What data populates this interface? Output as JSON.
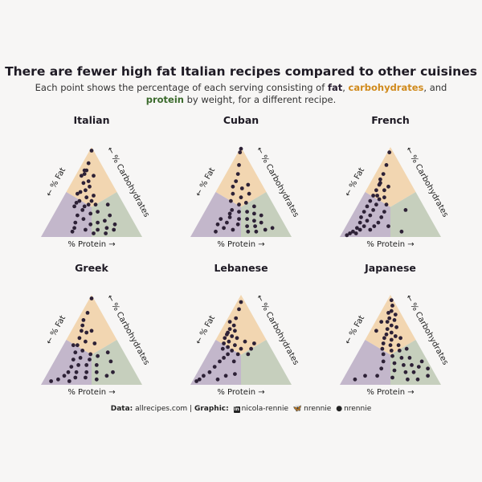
{
  "title": "There are fewer high fat Italian recipes compared to other cuisines",
  "subtitle": {
    "before": "Each point shows the percentage of each serving consisting of ",
    "fat": "fat",
    "sep1": ", ",
    "carbohydrates": "carbohydrates",
    "sep2": ", and ",
    "protein": "protein",
    "after": " by weight, for a different recipe."
  },
  "colors": {
    "fat_region": "#c3b7cb",
    "carb_region": "#f2d6b1",
    "protein_region": "#c6cfbd",
    "point": "#2d2136",
    "carb_text": "#d08a1c",
    "protein_text": "#3b6a2c"
  },
  "caption": {
    "data_label": "Data:",
    "data_value": "allrecipes.com",
    "divider": "|",
    "graphic_label": "Graphic:",
    "linkedin_icon": "linkedin-icon",
    "linkedin": "nicola-rennie",
    "bluesky_icon": "butterfly-icon",
    "bluesky": "nrennie",
    "github_icon": "github-icon",
    "github": "nrennie"
  },
  "chart_data": [
    {
      "type": "scatter",
      "subtype": "ternary",
      "title": "Italian",
      "axis_labels": {
        "fat": "← % Fat",
        "carbohydrates": "← % Carbohydrates",
        "protein": "% Protein →"
      },
      "point_columns": [
        "fat_pct",
        "carbohydrates_pct",
        "protein_pct"
      ],
      "points": [
        [
          2,
          96,
          2
        ],
        [
          12,
          82,
          6
        ],
        [
          20,
          74,
          6
        ],
        [
          22,
          70,
          8
        ],
        [
          26,
          68,
          6
        ],
        [
          18,
          74,
          8
        ],
        [
          28,
          60,
          12
        ],
        [
          24,
          56,
          20
        ],
        [
          30,
          52,
          18
        ],
        [
          36,
          50,
          14
        ],
        [
          40,
          48,
          12
        ],
        [
          33,
          44,
          23
        ],
        [
          42,
          40,
          18
        ],
        [
          46,
          38,
          16
        ],
        [
          30,
          40,
          30
        ],
        [
          25,
          46,
          29
        ],
        [
          50,
          34,
          16
        ],
        [
          40,
          34,
          26
        ],
        [
          35,
          36,
          29
        ],
        [
          28,
          36,
          36
        ],
        [
          44,
          30,
          26
        ],
        [
          52,
          24,
          24
        ],
        [
          38,
          26,
          36
        ],
        [
          30,
          28,
          42
        ],
        [
          48,
          20,
          32
        ],
        [
          58,
          16,
          26
        ],
        [
          44,
          14,
          42
        ],
        [
          36,
          16,
          48
        ],
        [
          28,
          18,
          54
        ],
        [
          20,
          24,
          56
        ],
        [
          62,
          10,
          28
        ],
        [
          52,
          8,
          40
        ],
        [
          40,
          8,
          52
        ],
        [
          30,
          10,
          60
        ],
        [
          20,
          14,
          66
        ],
        [
          66,
          6,
          28
        ],
        [
          46,
          4,
          50
        ],
        [
          34,
          4,
          62
        ],
        [
          24,
          8,
          68
        ],
        [
          16,
          36,
          48
        ],
        [
          22,
          62,
          16
        ],
        [
          14,
          68,
          18
        ]
      ]
    },
    {
      "type": "scatter",
      "subtype": "ternary",
      "title": "Cuban",
      "axis_labels": {
        "fat": "← % Fat",
        "carbohydrates": "← % Carbohydrates",
        "protein": "% Protein →"
      },
      "point_columns": [
        "fat_pct",
        "carbohydrates_pct",
        "protein_pct"
      ],
      "points": [
        [
          1,
          98,
          1
        ],
        [
          4,
          94,
          2
        ],
        [
          12,
          80,
          8
        ],
        [
          18,
          70,
          12
        ],
        [
          24,
          62,
          14
        ],
        [
          30,
          56,
          14
        ],
        [
          22,
          54,
          24
        ],
        [
          34,
          48,
          18
        ],
        [
          28,
          44,
          28
        ],
        [
          18,
          48,
          34
        ],
        [
          40,
          40,
          20
        ],
        [
          34,
          36,
          30
        ],
        [
          26,
          38,
          36
        ],
        [
          20,
          34,
          46
        ],
        [
          44,
          30,
          26
        ],
        [
          38,
          28,
          34
        ],
        [
          30,
          28,
          42
        ],
        [
          24,
          26,
          50
        ],
        [
          18,
          24,
          58
        ],
        [
          50,
          22,
          28
        ],
        [
          42,
          20,
          38
        ],
        [
          34,
          20,
          46
        ],
        [
          28,
          18,
          54
        ],
        [
          22,
          16,
          62
        ],
        [
          56,
          16,
          28
        ],
        [
          46,
          14,
          40
        ],
        [
          38,
          12,
          50
        ],
        [
          30,
          12,
          58
        ],
        [
          62,
          10,
          28
        ],
        [
          54,
          8,
          38
        ],
        [
          40,
          6,
          54
        ],
        [
          32,
          6,
          62
        ],
        [
          72,
          6,
          22
        ],
        [
          22,
          8,
          70
        ],
        [
          14,
          10,
          76
        ],
        [
          66,
          14,
          20
        ],
        [
          60,
          20,
          20
        ],
        [
          48,
          26,
          26
        ],
        [
          14,
          58,
          28
        ]
      ]
    },
    {
      "type": "scatter",
      "subtype": "ternary",
      "title": "French",
      "axis_labels": {
        "fat": "← % Fat",
        "carbohydrates": "← % Carbohydrates",
        "protein": "% Protein →"
      },
      "point_columns": [
        "fat_pct",
        "carbohydrates_pct",
        "protein_pct"
      ],
      "points": [
        [
          4,
          94,
          2
        ],
        [
          14,
          80,
          6
        ],
        [
          22,
          70,
          8
        ],
        [
          28,
          64,
          8
        ],
        [
          32,
          58,
          10
        ],
        [
          38,
          52,
          10
        ],
        [
          30,
          52,
          18
        ],
        [
          44,
          46,
          10
        ],
        [
          40,
          42,
          18
        ],
        [
          34,
          44,
          22
        ],
        [
          50,
          40,
          10
        ],
        [
          46,
          36,
          18
        ],
        [
          36,
          36,
          28
        ],
        [
          56,
          34,
          10
        ],
        [
          52,
          30,
          18
        ],
        [
          42,
          28,
          30
        ],
        [
          62,
          28,
          10
        ],
        [
          58,
          24,
          18
        ],
        [
          48,
          22,
          30
        ],
        [
          68,
          22,
          10
        ],
        [
          64,
          18,
          18
        ],
        [
          54,
          16,
          30
        ],
        [
          72,
          16,
          12
        ],
        [
          70,
          12,
          18
        ],
        [
          60,
          12,
          28
        ],
        [
          78,
          10,
          12
        ],
        [
          76,
          8,
          16
        ],
        [
          66,
          8,
          26
        ],
        [
          84,
          6,
          10
        ],
        [
          82,
          4,
          14
        ],
        [
          88,
          4,
          8
        ],
        [
          92,
          2,
          6
        ],
        [
          30,
          60,
          10
        ],
        [
          24,
          56,
          20
        ],
        [
          46,
          12,
          42
        ],
        [
          36,
          6,
          58
        ],
        [
          20,
          30,
          50
        ],
        [
          40,
          46,
          14
        ]
      ]
    },
    {
      "type": "scatter",
      "subtype": "ternary",
      "title": "Greek",
      "axis_labels": {
        "fat": "← % Fat",
        "carbohydrates": "← % Carbohydrates",
        "protein": "% Protein →"
      },
      "point_columns": [
        "fat_pct",
        "carbohydrates_pct",
        "protein_pct"
      ],
      "points": [
        [
          2,
          96,
          2
        ],
        [
          14,
          80,
          6
        ],
        [
          22,
          72,
          6
        ],
        [
          30,
          60,
          10
        ],
        [
          26,
          58,
          16
        ],
        [
          36,
          52,
          12
        ],
        [
          32,
          48,
          20
        ],
        [
          42,
          44,
          14
        ],
        [
          24,
          46,
          30
        ],
        [
          40,
          38,
          22
        ],
        [
          48,
          36,
          16
        ],
        [
          34,
          34,
          32
        ],
        [
          46,
          30,
          24
        ],
        [
          54,
          28,
          18
        ],
        [
          38,
          28,
          34
        ],
        [
          28,
          32,
          40
        ],
        [
          52,
          22,
          26
        ],
        [
          60,
          20,
          20
        ],
        [
          44,
          22,
          34
        ],
        [
          34,
          22,
          44
        ],
        [
          66,
          14,
          20
        ],
        [
          58,
          14,
          28
        ],
        [
          48,
          14,
          38
        ],
        [
          38,
          14,
          48
        ],
        [
          72,
          10,
          18
        ],
        [
          62,
          8,
          30
        ],
        [
          52,
          8,
          40
        ],
        [
          42,
          6,
          52
        ],
        [
          80,
          6,
          14
        ],
        [
          70,
          4,
          26
        ],
        [
          88,
          4,
          8
        ],
        [
          30,
          10,
          60
        ],
        [
          22,
          14,
          64
        ],
        [
          18,
          26,
          56
        ],
        [
          16,
          36,
          48
        ],
        [
          20,
          60,
          20
        ],
        [
          26,
          66,
          8
        ],
        [
          46,
          44,
          10
        ]
      ]
    },
    {
      "type": "scatter",
      "subtype": "ternary",
      "title": "Lebanese",
      "axis_labels": {
        "fat": "← % Fat",
        "carbohydrates": "← % Carbohydrates",
        "protein": "% Protein →"
      },
      "point_columns": [
        "fat_pct",
        "carbohydrates_pct",
        "protein_pct"
      ],
      "points": [
        [
          4,
          92,
          4
        ],
        [
          10,
          84,
          6
        ],
        [
          18,
          74,
          8
        ],
        [
          24,
          66,
          10
        ],
        [
          30,
          62,
          8
        ],
        [
          26,
          60,
          14
        ],
        [
          36,
          56,
          8
        ],
        [
          32,
          54,
          14
        ],
        [
          40,
          52,
          8
        ],
        [
          28,
          52,
          20
        ],
        [
          38,
          48,
          14
        ],
        [
          44,
          46,
          10
        ],
        [
          34,
          44,
          22
        ],
        [
          42,
          42,
          16
        ],
        [
          22,
          48,
          30
        ],
        [
          48,
          40,
          12
        ],
        [
          30,
          40,
          30
        ],
        [
          40,
          38,
          22
        ],
        [
          46,
          34,
          20
        ],
        [
          36,
          34,
          30
        ],
        [
          52,
          30,
          18
        ],
        [
          26,
          34,
          40
        ],
        [
          58,
          26,
          16
        ],
        [
          44,
          26,
          30
        ],
        [
          66,
          20,
          14
        ],
        [
          74,
          14,
          12
        ],
        [
          82,
          10,
          8
        ],
        [
          88,
          6,
          6
        ],
        [
          92,
          4,
          4
        ],
        [
          60,
          10,
          30
        ],
        [
          70,
          6,
          24
        ],
        [
          50,
          12,
          38
        ],
        [
          20,
          40,
          40
        ],
        [
          14,
          46,
          40
        ],
        [
          34,
          58,
          8
        ],
        [
          26,
          70,
          4
        ]
      ]
    },
    {
      "type": "scatter",
      "subtype": "ternary",
      "title": "Japanese",
      "axis_labels": {
        "fat": "← % Fat",
        "carbohydrates": "← % Carbohydrates",
        "protein": "% Protein →"
      },
      "point_columns": [
        "fat_pct",
        "carbohydrates_pct",
        "protein_pct"
      ],
      "points": [
        [
          2,
          94,
          4
        ],
        [
          4,
          88,
          8
        ],
        [
          8,
          82,
          10
        ],
        [
          12,
          80,
          8
        ],
        [
          6,
          78,
          16
        ],
        [
          14,
          74,
          12
        ],
        [
          10,
          72,
          18
        ],
        [
          18,
          70,
          12
        ],
        [
          16,
          66,
          18
        ],
        [
          22,
          62,
          16
        ],
        [
          12,
          64,
          24
        ],
        [
          20,
          58,
          22
        ],
        [
          26,
          56,
          18
        ],
        [
          18,
          54,
          28
        ],
        [
          30,
          52,
          18
        ],
        [
          24,
          50,
          26
        ],
        [
          14,
          52,
          34
        ],
        [
          34,
          46,
          20
        ],
        [
          28,
          44,
          28
        ],
        [
          20,
          44,
          36
        ],
        [
          38,
          40,
          22
        ],
        [
          30,
          38,
          32
        ],
        [
          22,
          38,
          40
        ],
        [
          14,
          40,
          46
        ],
        [
          40,
          34,
          26
        ],
        [
          32,
          32,
          36
        ],
        [
          24,
          30,
          46
        ],
        [
          16,
          30,
          54
        ],
        [
          44,
          26,
          30
        ],
        [
          34,
          24,
          42
        ],
        [
          26,
          22,
          52
        ],
        [
          18,
          22,
          60
        ],
        [
          50,
          18,
          32
        ],
        [
          38,
          16,
          46
        ],
        [
          28,
          14,
          58
        ],
        [
          20,
          14,
          66
        ],
        [
          58,
          10,
          32
        ],
        [
          44,
          8,
          48
        ],
        [
          30,
          6,
          64
        ],
        [
          20,
          6,
          74
        ],
        [
          12,
          20,
          68
        ],
        [
          70,
          10,
          20
        ],
        [
          82,
          6,
          12
        ],
        [
          6,
          26,
          68
        ],
        [
          4,
          18,
          78
        ],
        [
          8,
          10,
          82
        ],
        [
          24,
          70,
          6
        ],
        [
          34,
          60,
          6
        ]
      ]
    }
  ]
}
